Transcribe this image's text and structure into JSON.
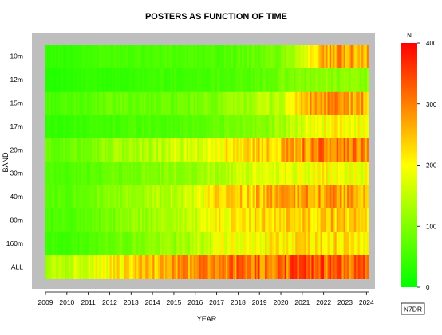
{
  "chart_data": {
    "type": "heatmap",
    "title": "POSTERS AS FUNCTION OF TIME",
    "xlabel": "YEAR",
    "ylabel": "BAND",
    "x_ticks": [
      "2009",
      "2010",
      "2011",
      "2012",
      "2013",
      "2014",
      "2015",
      "2016",
      "2017",
      "2018",
      "2019",
      "2020",
      "2021",
      "2022",
      "2023",
      "2024"
    ],
    "x_range": [
      2009,
      2024.1
    ],
    "rows": [
      "10m",
      "12m",
      "15m",
      "17m",
      "20m",
      "30m",
      "40m",
      "80m",
      "160m",
      "ALL"
    ],
    "colorbar": {
      "label": "N",
      "min": 0,
      "max": 400,
      "ticks": [
        "0",
        "100",
        "200",
        "300",
        "400"
      ]
    },
    "approx_level_by_year": {
      "years": [
        2009,
        2010,
        2011,
        2012,
        2013,
        2014,
        2015,
        2016,
        2017,
        2018,
        2019,
        2020,
        2021,
        2022,
        2023,
        2024
      ],
      "series": [
        {
          "name": "10m",
          "values": [
            40,
            40,
            50,
            60,
            60,
            60,
            60,
            60,
            60,
            70,
            80,
            100,
            180,
            250,
            280,
            270
          ]
        },
        {
          "name": "12m",
          "values": [
            30,
            30,
            40,
            40,
            40,
            50,
            50,
            50,
            60,
            60,
            70,
            90,
            100,
            110,
            110,
            110
          ]
        },
        {
          "name": "15m",
          "values": [
            60,
            60,
            70,
            80,
            80,
            80,
            80,
            90,
            100,
            120,
            140,
            150,
            250,
            280,
            270,
            260
          ]
        },
        {
          "name": "17m",
          "values": [
            40,
            40,
            50,
            50,
            60,
            60,
            60,
            70,
            80,
            90,
            110,
            120,
            170,
            200,
            200,
            190
          ]
        },
        {
          "name": "20m",
          "values": [
            80,
            80,
            100,
            120,
            130,
            140,
            160,
            170,
            200,
            220,
            240,
            250,
            290,
            300,
            290,
            280
          ]
        },
        {
          "name": "30m",
          "values": [
            60,
            60,
            70,
            80,
            90,
            100,
            110,
            120,
            140,
            150,
            170,
            180,
            190,
            200,
            190,
            190
          ]
        },
        {
          "name": "40m",
          "values": [
            70,
            70,
            90,
            100,
            120,
            140,
            150,
            170,
            220,
            240,
            250,
            260,
            270,
            280,
            270,
            260
          ]
        },
        {
          "name": "80m",
          "values": [
            60,
            60,
            80,
            90,
            110,
            120,
            140,
            160,
            200,
            210,
            220,
            230,
            240,
            250,
            240,
            230
          ]
        },
        {
          "name": "160m",
          "values": [
            50,
            50,
            60,
            80,
            90,
            110,
            120,
            140,
            180,
            190,
            200,
            210,
            220,
            230,
            220,
            210
          ]
        },
        {
          "name": "ALL",
          "values": [
            140,
            150,
            180,
            200,
            230,
            250,
            270,
            290,
            300,
            305,
            310,
            315,
            320,
            330,
            320,
            310
          ]
        }
      ]
    }
  },
  "footer": {
    "badge": "N7DR"
  },
  "colors": {
    "panel_bg": "#bebebe",
    "gradient": [
      "#00ff00",
      "#ffff00",
      "#ff0000"
    ]
  }
}
